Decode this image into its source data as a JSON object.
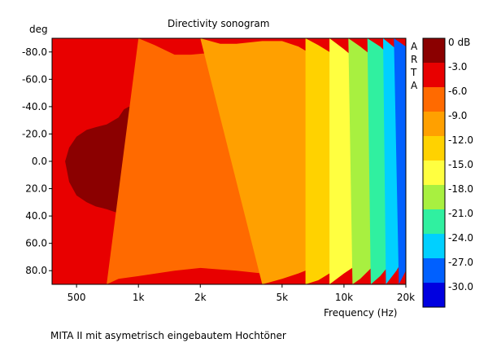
{
  "chart_data": {
    "type": "heatmap",
    "title": "Directivity sonogram",
    "xlabel": "Frequency (Hz)",
    "ylabel": "deg",
    "x_scale": "log",
    "xlim": [
      380,
      20000
    ],
    "ylim": [
      -90,
      90
    ],
    "x_ticks": [
      {
        "value": 500,
        "label": "500"
      },
      {
        "value": 1000,
        "label": "1k"
      },
      {
        "value": 2000,
        "label": "2k"
      },
      {
        "value": 5000,
        "label": "5k"
      },
      {
        "value": 10000,
        "label": "10k"
      },
      {
        "value": 20000,
        "label": "20k"
      }
    ],
    "y_ticks": [
      {
        "value": -80,
        "label": "-80.0"
      },
      {
        "value": -60,
        "label": "-60.0"
      },
      {
        "value": -40,
        "label": "-40.0"
      },
      {
        "value": -20,
        "label": "-20.0"
      },
      {
        "value": 0,
        "label": "0.0"
      },
      {
        "value": 20,
        "label": "20.0"
      },
      {
        "value": 40,
        "label": "40.0"
      },
      {
        "value": 60,
        "label": "60.0"
      },
      {
        "value": 80,
        "label": "80.0"
      }
    ],
    "color_scale": {
      "labels": [
        "0 dB",
        "-3.0",
        "-6.0",
        "-9.0",
        "-12.0",
        "-15.0",
        "-18.0",
        "-21.0",
        "-24.0",
        "-27.0",
        "-30.0"
      ],
      "colors": [
        "#8b0000",
        "#e80000",
        "#ff6a00",
        "#ffa000",
        "#ffd200",
        "#ffff40",
        "#a8f040",
        "#30f0a0",
        "#00d0ff",
        "#0060ff",
        "#0000e0"
      ]
    },
    "contours_db": [
      {
        "level": -3,
        "points": [
          [
            380,
            -70
          ],
          [
            500,
            -72
          ],
          [
            600,
            -73
          ],
          [
            700,
            -71
          ],
          [
            800,
            -65
          ],
          [
            950,
            -66
          ],
          [
            1100,
            -67
          ],
          [
            1300,
            -68
          ],
          [
            1500,
            -72
          ],
          [
            1800,
            -71
          ],
          [
            2000,
            -70
          ],
          [
            2500,
            -73
          ],
          [
            3000,
            -74
          ],
          [
            3500,
            -76
          ],
          [
            4000,
            -77
          ],
          [
            4500,
            -75
          ],
          [
            5000,
            -72
          ],
          [
            6000,
            -60
          ],
          [
            7000,
            -50
          ],
          [
            8000,
            -45
          ],
          [
            9000,
            -40
          ],
          [
            10000,
            -35
          ],
          [
            12000,
            -28
          ],
          [
            14000,
            -25
          ],
          [
            16000,
            -20
          ],
          [
            18000,
            -12
          ],
          [
            20000,
            -5
          ],
          [
            20000,
            5
          ],
          [
            18000,
            12
          ],
          [
            16000,
            20
          ],
          [
            14000,
            26
          ],
          [
            12000,
            30
          ],
          [
            10000,
            40
          ],
          [
            9000,
            48
          ],
          [
            8000,
            54
          ],
          [
            7000,
            60
          ],
          [
            6000,
            66
          ],
          [
            5000,
            70
          ],
          [
            4000,
            72
          ],
          [
            3000,
            70
          ],
          [
            2500,
            69
          ],
          [
            2000,
            69
          ],
          [
            1500,
            68
          ],
          [
            1300,
            66
          ],
          [
            1100,
            62
          ],
          [
            1000,
            60
          ],
          [
            950,
            59
          ],
          [
            800,
            64
          ],
          [
            700,
            70
          ],
          [
            600,
            75
          ],
          [
            500,
            78
          ],
          [
            380,
            80
          ]
        ]
      },
      {
        "level": 0,
        "points": [
          [
            440,
            0
          ],
          [
            460,
            -10
          ],
          [
            500,
            -18
          ],
          [
            560,
            -23
          ],
          [
            620,
            -25
          ],
          [
            700,
            -27
          ],
          [
            800,
            -32
          ],
          [
            850,
            -38
          ],
          [
            900,
            -40
          ],
          [
            950,
            -38
          ],
          [
            1000,
            -20
          ],
          [
            1030,
            -15
          ],
          [
            1100,
            -22
          ],
          [
            1200,
            -28
          ],
          [
            1400,
            -30
          ],
          [
            1700,
            -32
          ],
          [
            2000,
            -34
          ],
          [
            2500,
            -35
          ],
          [
            3000,
            -37
          ],
          [
            3300,
            -42
          ],
          [
            3600,
            -48
          ],
          [
            4000,
            -50
          ],
          [
            4500,
            -44
          ],
          [
            5000,
            -38
          ],
          [
            5500,
            -30
          ],
          [
            6000,
            -27
          ],
          [
            7000,
            -25
          ],
          [
            8000,
            -24
          ],
          [
            9000,
            -25
          ],
          [
            10000,
            -22
          ],
          [
            12000,
            -20
          ],
          [
            14000,
            -15
          ],
          [
            16000,
            -8
          ],
          [
            17500,
            0
          ],
          [
            16000,
            8
          ],
          [
            14000,
            15
          ],
          [
            12000,
            18
          ],
          [
            10000,
            20
          ],
          [
            8000,
            22
          ],
          [
            7000,
            25
          ],
          [
            6000,
            30
          ],
          [
            5500,
            42
          ],
          [
            5000,
            55
          ],
          [
            4500,
            62
          ],
          [
            4000,
            60
          ],
          [
            3500,
            53
          ],
          [
            3000,
            45
          ],
          [
            2500,
            42
          ],
          [
            2000,
            40
          ],
          [
            1700,
            38
          ],
          [
            1400,
            38
          ],
          [
            1200,
            40
          ],
          [
            1100,
            43
          ],
          [
            1000,
            48
          ],
          [
            950,
            48
          ],
          [
            900,
            44
          ],
          [
            850,
            42
          ],
          [
            800,
            38
          ],
          [
            700,
            35
          ],
          [
            620,
            33
          ],
          [
            560,
            30
          ],
          [
            500,
            25
          ],
          [
            460,
            15
          ]
        ]
      },
      {
        "level": -6,
        "points": [
          [
            1000,
            -90
          ],
          [
            1200,
            -85
          ],
          [
            1500,
            -78
          ],
          [
            1800,
            -78
          ],
          [
            2500,
            -80
          ],
          [
            3000,
            -82
          ],
          [
            4000,
            -84
          ],
          [
            5000,
            -82
          ],
          [
            6000,
            -75
          ],
          [
            7000,
            -68
          ],
          [
            8000,
            -62
          ],
          [
            10000,
            -50
          ],
          [
            12000,
            -40
          ],
          [
            14000,
            -32
          ],
          [
            16000,
            -25
          ],
          [
            18000,
            -18
          ],
          [
            20000,
            -12
          ],
          [
            20000,
            8
          ],
          [
            18000,
            20
          ],
          [
            16000,
            30
          ],
          [
            14000,
            40
          ],
          [
            12000,
            48
          ],
          [
            10000,
            56
          ],
          [
            8000,
            64
          ],
          [
            7000,
            70
          ],
          [
            6000,
            74
          ],
          [
            5000,
            80
          ],
          [
            4000,
            82
          ],
          [
            3000,
            80
          ],
          [
            2000,
            78
          ],
          [
            1500,
            80
          ],
          [
            1000,
            84
          ],
          [
            800,
            86
          ],
          [
            700,
            90
          ]
        ]
      },
      {
        "level": -9,
        "points": [
          [
            2000,
            -90
          ],
          [
            2500,
            -86
          ],
          [
            3000,
            -86
          ],
          [
            4000,
            -88
          ],
          [
            5000,
            -88
          ],
          [
            6000,
            -84
          ],
          [
            7000,
            -78
          ],
          [
            8000,
            -72
          ],
          [
            10000,
            -62
          ],
          [
            12000,
            -50
          ],
          [
            14000,
            -42
          ],
          [
            16000,
            -34
          ],
          [
            18000,
            -26
          ],
          [
            20000,
            -20
          ],
          [
            20000,
            16
          ],
          [
            18000,
            28
          ],
          [
            16000,
            38
          ],
          [
            14000,
            48
          ],
          [
            12000,
            56
          ],
          [
            10000,
            64
          ],
          [
            8000,
            72
          ],
          [
            7000,
            78
          ],
          [
            6000,
            82
          ],
          [
            5000,
            86
          ],
          [
            4000,
            90
          ]
        ]
      },
      {
        "level": -12,
        "points": [
          [
            6500,
            -90
          ],
          [
            7500,
            -85
          ],
          [
            8500,
            -80
          ],
          [
            10000,
            -72
          ],
          [
            12000,
            -62
          ],
          [
            14000,
            -52
          ],
          [
            16000,
            -44
          ],
          [
            18000,
            -36
          ],
          [
            20000,
            -28
          ],
          [
            20000,
            24
          ],
          [
            18000,
            36
          ],
          [
            16000,
            46
          ],
          [
            14000,
            56
          ],
          [
            12000,
            66
          ],
          [
            10000,
            74
          ],
          [
            8500,
            82
          ],
          [
            7500,
            87
          ],
          [
            6500,
            90
          ]
        ]
      },
      {
        "level": -15,
        "points": [
          [
            8500,
            -90
          ],
          [
            10000,
            -82
          ],
          [
            12000,
            -72
          ],
          [
            14000,
            -64
          ],
          [
            16000,
            -56
          ],
          [
            18000,
            -46
          ],
          [
            20000,
            -36
          ],
          [
            20000,
            32
          ],
          [
            18000,
            44
          ],
          [
            16000,
            56
          ],
          [
            14000,
            64
          ],
          [
            12000,
            74
          ],
          [
            10000,
            82
          ],
          [
            8500,
            90
          ]
        ]
      },
      {
        "level": -18,
        "points": [
          [
            10500,
            -90
          ],
          [
            12000,
            -84
          ],
          [
            14000,
            -76
          ],
          [
            16000,
            -68
          ],
          [
            18000,
            -58
          ],
          [
            20000,
            -48
          ],
          [
            20000,
            44
          ],
          [
            18000,
            56
          ],
          [
            16000,
            66
          ],
          [
            14000,
            76
          ],
          [
            12000,
            86
          ],
          [
            11000,
            90
          ]
        ]
      },
      {
        "level": -21,
        "points": [
          [
            13000,
            -90
          ],
          [
            15000,
            -84
          ],
          [
            17000,
            -76
          ],
          [
            20000,
            -62
          ],
          [
            20000,
            58
          ],
          [
            17000,
            74
          ],
          [
            15000,
            84
          ],
          [
            13500,
            90
          ]
        ]
      },
      {
        "level": -24,
        "points": [
          [
            15500,
            -90
          ],
          [
            18000,
            -82
          ],
          [
            20000,
            -74
          ],
          [
            20000,
            68
          ],
          [
            18000,
            80
          ],
          [
            16000,
            90
          ]
        ]
      },
      {
        "level": -27,
        "points": [
          [
            17500,
            -90
          ],
          [
            20000,
            -84
          ],
          [
            20000,
            80
          ],
          [
            18500,
            90
          ]
        ]
      }
    ]
  },
  "side_text": [
    "A",
    "R",
    "T",
    "A"
  ],
  "footer_note": "MITA II mit asymetrisch eingebautem Hochtöner"
}
